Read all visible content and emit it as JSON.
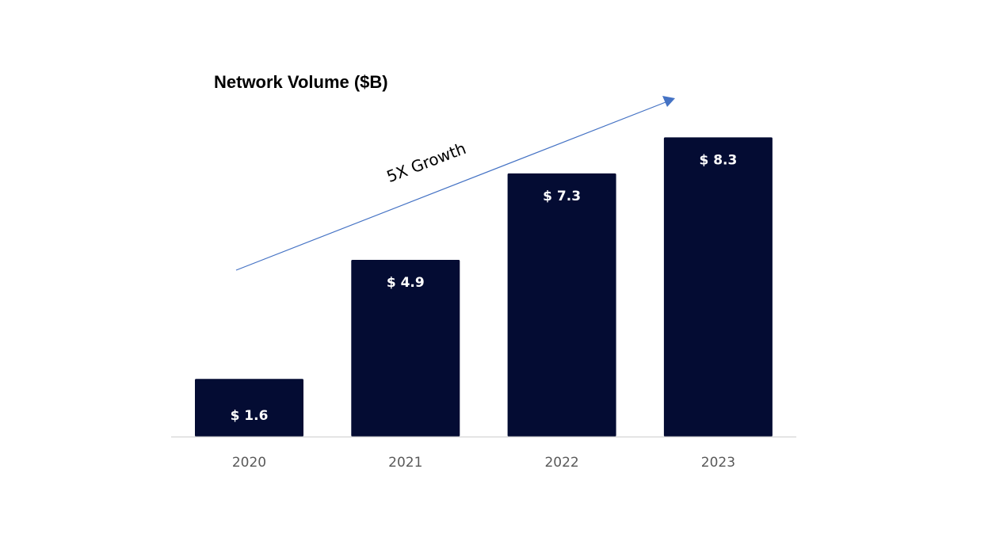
{
  "chart_data": {
    "type": "bar",
    "title": "Network Volume ($B)",
    "categories": [
      "2020",
      "2021",
      "2022",
      "2023"
    ],
    "values": [
      1.6,
      4.9,
      7.3,
      8.3
    ],
    "data_labels": [
      "$ 1.6",
      "$ 4.9",
      "$ 7.3",
      "$ 8.3"
    ],
    "xlabel": "",
    "ylabel": "",
    "ylim": [
      0,
      10
    ],
    "grid": false,
    "annotation": "5X Growth",
    "colors": {
      "bar": "#040c33",
      "arrow": "#4472c4",
      "axis": "#d9d9d9"
    }
  }
}
